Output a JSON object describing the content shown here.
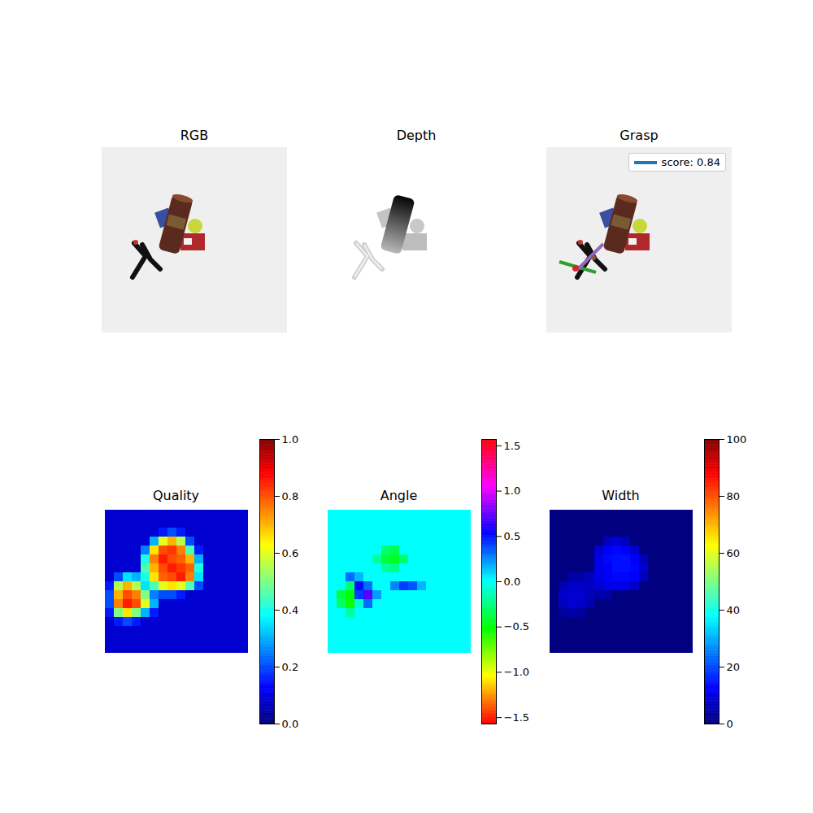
{
  "chart_data": [
    {
      "type": "image",
      "title": "RGB",
      "tick_labels": false
    },
    {
      "type": "image",
      "title": "Depth",
      "tick_labels": false
    },
    {
      "type": "image",
      "title": "Grasp",
      "tick_labels": false,
      "legend": "upper right",
      "series": [
        {
          "name": "score: 0.84",
          "color": "#1f77b4"
        }
      ]
    },
    {
      "type": "heatmap",
      "title": "Quality",
      "tick_labels": false,
      "color": "jet",
      "cells": [
        [
          0.08,
          0.08,
          0.08,
          0.08,
          0.08,
          0.08,
          0.08,
          0.08,
          0.08,
          0.08,
          0.08,
          0.08,
          0.08,
          0.08,
          0.08,
          0.08
        ],
        [
          0.08,
          0.08,
          0.08,
          0.08,
          0.08,
          0.08,
          0.08,
          0.08,
          0.08,
          0.08,
          0.08,
          0.08,
          0.08,
          0.08,
          0.08,
          0.08
        ],
        [
          0.08,
          0.08,
          0.08,
          0.08,
          0.08,
          0.08,
          0.15,
          0.2,
          0.15,
          0.08,
          0.08,
          0.08,
          0.08,
          0.08,
          0.08,
          0.08
        ],
        [
          0.08,
          0.08,
          0.08,
          0.08,
          0.08,
          0.3,
          0.6,
          0.7,
          0.55,
          0.2,
          0.08,
          0.08,
          0.08,
          0.08,
          0.08,
          0.08
        ],
        [
          0.08,
          0.08,
          0.08,
          0.08,
          0.25,
          0.65,
          0.8,
          0.82,
          0.75,
          0.45,
          0.15,
          0.08,
          0.08,
          0.08,
          0.08,
          0.08
        ],
        [
          0.08,
          0.08,
          0.08,
          0.08,
          0.4,
          0.75,
          0.85,
          0.8,
          0.78,
          0.7,
          0.3,
          0.08,
          0.08,
          0.08,
          0.08,
          0.08
        ],
        [
          0.08,
          0.08,
          0.08,
          0.08,
          0.45,
          0.7,
          0.8,
          0.85,
          0.82,
          0.78,
          0.4,
          0.08,
          0.08,
          0.08,
          0.08,
          0.08
        ],
        [
          0.08,
          0.2,
          0.35,
          0.3,
          0.4,
          0.65,
          0.78,
          0.8,
          0.85,
          0.75,
          0.35,
          0.08,
          0.08,
          0.08,
          0.08,
          0.08
        ],
        [
          0.15,
          0.55,
          0.7,
          0.55,
          0.35,
          0.45,
          0.6,
          0.65,
          0.6,
          0.45,
          0.2,
          0.08,
          0.08,
          0.08,
          0.08,
          0.08
        ],
        [
          0.2,
          0.7,
          0.8,
          0.75,
          0.5,
          0.25,
          0.2,
          0.2,
          0.15,
          0.08,
          0.08,
          0.08,
          0.08,
          0.08,
          0.08,
          0.08
        ],
        [
          0.2,
          0.75,
          0.85,
          0.8,
          0.6,
          0.3,
          0.08,
          0.08,
          0.08,
          0.08,
          0.08,
          0.08,
          0.08,
          0.08,
          0.08,
          0.08
        ],
        [
          0.15,
          0.5,
          0.65,
          0.5,
          0.3,
          0.15,
          0.08,
          0.08,
          0.08,
          0.08,
          0.08,
          0.08,
          0.08,
          0.08,
          0.08,
          0.08
        ],
        [
          0.08,
          0.15,
          0.2,
          0.15,
          0.08,
          0.08,
          0.08,
          0.08,
          0.08,
          0.08,
          0.08,
          0.08,
          0.08,
          0.08,
          0.08,
          0.08
        ],
        [
          0.08,
          0.08,
          0.08,
          0.08,
          0.08,
          0.08,
          0.08,
          0.08,
          0.08,
          0.08,
          0.08,
          0.08,
          0.08,
          0.08,
          0.08,
          0.08
        ],
        [
          0.08,
          0.08,
          0.08,
          0.08,
          0.08,
          0.08,
          0.08,
          0.08,
          0.08,
          0.08,
          0.08,
          0.08,
          0.08,
          0.08,
          0.08,
          0.08
        ],
        [
          0.08,
          0.08,
          0.08,
          0.08,
          0.08,
          0.08,
          0.08,
          0.08,
          0.08,
          0.08,
          0.08,
          0.08,
          0.08,
          0.08,
          0.08,
          0.08
        ]
      ],
      "colorbar": {
        "range": [
          0,
          1
        ],
        "ticks": [
          {
            "value": 0,
            "label": "0.0"
          },
          {
            "value": 0.2,
            "label": "0.2"
          },
          {
            "value": 0.4,
            "label": "0.4"
          },
          {
            "value": 0.6,
            "label": "0.6"
          },
          {
            "value": 0.8,
            "label": "0.8"
          },
          {
            "value": 1,
            "label": "1.0"
          }
        ]
      }
    },
    {
      "type": "heatmap",
      "title": "Angle",
      "tick_labels": false,
      "color": "hsv",
      "cells": [
        [
          0,
          0,
          0,
          0,
          0,
          0,
          0,
          0,
          0,
          0,
          0,
          0,
          0,
          0,
          0,
          0
        ],
        [
          0,
          0,
          0,
          0,
          0,
          0,
          0,
          0,
          0,
          0,
          0,
          0,
          0,
          0,
          0,
          0
        ],
        [
          0,
          0,
          0,
          0,
          0,
          0,
          0,
          0,
          0,
          0,
          0,
          0,
          0,
          0,
          0,
          0
        ],
        [
          0,
          0,
          0,
          0,
          0,
          0,
          0,
          0,
          0,
          0,
          0,
          0,
          0,
          0,
          0,
          0
        ],
        [
          0,
          0,
          0,
          0,
          0,
          0,
          -0.3,
          -0.35,
          0,
          0,
          0,
          0,
          0,
          0,
          0,
          0
        ],
        [
          0,
          0,
          0,
          0,
          0,
          -0.2,
          -0.4,
          -0.45,
          -0.3,
          0,
          0,
          0,
          0,
          0,
          0,
          0
        ],
        [
          0,
          0,
          0,
          0,
          0,
          0,
          -0.2,
          -0.25,
          0,
          0,
          0,
          0,
          0,
          0,
          0,
          0
        ],
        [
          0,
          0,
          0.3,
          0.15,
          0,
          0,
          0,
          0,
          0,
          0,
          0,
          0,
          0,
          0,
          0,
          0
        ],
        [
          0,
          0,
          -0.3,
          0.5,
          0.3,
          0,
          0,
          0.25,
          0.4,
          0.35,
          0.15,
          0,
          0,
          0,
          0,
          0
        ],
        [
          0,
          -0.4,
          -0.5,
          0.4,
          0.7,
          0.2,
          0,
          0,
          0,
          0,
          0,
          0,
          0,
          0,
          0,
          0
        ],
        [
          0,
          -0.3,
          -0.55,
          -0.1,
          0.3,
          0,
          0,
          0,
          0,
          0,
          0,
          0,
          0,
          0,
          0,
          0
        ],
        [
          0,
          0,
          -0.2,
          0,
          0,
          0,
          0,
          0,
          0,
          0,
          0,
          0,
          0,
          0,
          0,
          0
        ],
        [
          0,
          0,
          0,
          0,
          0,
          0,
          0,
          0,
          0,
          0,
          0,
          0,
          0,
          0,
          0,
          0
        ],
        [
          0,
          0,
          0,
          0,
          0,
          0,
          0,
          0,
          0,
          0,
          0,
          0,
          0,
          0,
          0,
          0
        ],
        [
          0,
          0,
          0,
          0,
          0,
          0,
          0,
          0,
          0,
          0,
          0,
          0,
          0,
          0,
          0,
          0
        ],
        [
          0,
          0,
          0,
          0,
          0,
          0,
          0,
          0,
          0,
          0,
          0,
          0,
          0,
          0,
          0,
          0
        ]
      ],
      "colorbar": {
        "range": [
          -1.5708,
          1.5708
        ],
        "ticks": [
          {
            "value": -1.5,
            "label": "−1.5"
          },
          {
            "value": -1,
            "label": "−1.0"
          },
          {
            "value": -0.5,
            "label": "−0.5"
          },
          {
            "value": 0,
            "label": "0.0"
          },
          {
            "value": 0.5,
            "label": "0.5"
          },
          {
            "value": 1,
            "label": "1.0"
          },
          {
            "value": 1.5,
            "label": "1.5"
          }
        ]
      }
    },
    {
      "type": "heatmap",
      "title": "Width",
      "tick_labels": false,
      "color": "jet",
      "cells": [
        [
          0,
          0,
          0,
          0,
          0,
          0,
          0,
          0,
          0,
          0,
          0,
          0,
          0,
          0,
          0,
          0
        ],
        [
          0,
          0,
          0,
          0,
          0,
          0,
          0,
          0,
          0,
          0,
          0,
          0,
          0,
          0,
          0,
          0
        ],
        [
          0,
          0,
          0,
          0,
          0,
          0,
          0,
          0,
          0,
          0,
          0,
          0,
          0,
          0,
          0,
          0
        ],
        [
          0,
          0,
          0,
          0,
          0,
          0,
          6,
          8,
          6,
          0,
          0,
          0,
          0,
          0,
          0,
          0
        ],
        [
          0,
          0,
          0,
          0,
          0,
          8,
          12,
          13,
          12,
          8,
          0,
          0,
          0,
          0,
          0,
          0
        ],
        [
          0,
          0,
          0,
          0,
          0,
          10,
          13,
          14,
          14,
          12,
          6,
          0,
          0,
          0,
          0,
          0
        ],
        [
          0,
          0,
          0,
          0,
          0,
          10,
          12,
          14,
          14,
          13,
          8,
          0,
          0,
          0,
          0,
          0
        ],
        [
          0,
          0,
          4,
          4,
          6,
          10,
          12,
          13,
          13,
          12,
          6,
          0,
          0,
          0,
          0,
          0
        ],
        [
          0,
          5,
          7,
          7,
          6,
          8,
          10,
          11,
          10,
          7,
          0,
          0,
          0,
          0,
          0,
          0
        ],
        [
          0,
          7,
          8,
          8,
          6,
          4,
          4,
          0,
          0,
          0,
          0,
          0,
          0,
          0,
          0,
          0
        ],
        [
          0,
          6,
          8,
          7,
          5,
          0,
          0,
          0,
          0,
          0,
          0,
          0,
          0,
          0,
          0,
          0
        ],
        [
          0,
          3,
          4,
          3,
          0,
          0,
          0,
          0,
          0,
          0,
          0,
          0,
          0,
          0,
          0,
          0
        ],
        [
          0,
          0,
          0,
          0,
          0,
          0,
          0,
          0,
          0,
          0,
          0,
          0,
          0,
          0,
          0,
          0
        ],
        [
          0,
          0,
          0,
          0,
          0,
          0,
          0,
          0,
          0,
          0,
          0,
          0,
          0,
          0,
          0,
          0
        ],
        [
          0,
          0,
          0,
          0,
          0,
          0,
          0,
          0,
          0,
          0,
          0,
          0,
          0,
          0,
          0,
          0
        ],
        [
          0,
          0,
          0,
          0,
          0,
          0,
          0,
          0,
          0,
          0,
          0,
          0,
          0,
          0,
          0,
          0
        ]
      ],
      "colorbar": {
        "range": [
          0,
          100
        ],
        "ticks": [
          0,
          20,
          40,
          60,
          80,
          100
        ]
      }
    }
  ]
}
